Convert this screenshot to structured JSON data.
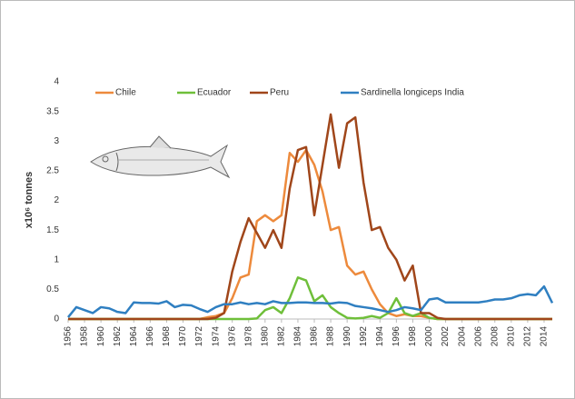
{
  "chart_data": {
    "type": "line",
    "y_label": "x10⁶ tonnes",
    "x": [
      1956,
      1957,
      1958,
      1959,
      1960,
      1961,
      1962,
      1963,
      1964,
      1965,
      1966,
      1967,
      1968,
      1969,
      1970,
      1971,
      1972,
      1973,
      1974,
      1975,
      1976,
      1977,
      1978,
      1979,
      1980,
      1981,
      1982,
      1983,
      1984,
      1985,
      1986,
      1987,
      1988,
      1989,
      1990,
      1991,
      1992,
      1993,
      1994,
      1995,
      1996,
      1997,
      1998,
      1999,
      2000,
      2001,
      2002,
      2003,
      2004,
      2005,
      2006,
      2007,
      2008,
      2009,
      2010,
      2011,
      2012,
      2013,
      2014,
      2015
    ],
    "xlim": [
      1956,
      2015
    ],
    "xticks": [
      1956,
      1958,
      1960,
      1962,
      1964,
      1966,
      1968,
      1970,
      1972,
      1974,
      1976,
      1978,
      1980,
      1982,
      1984,
      1986,
      1988,
      1990,
      1992,
      1994,
      1996,
      1998,
      2000,
      2002,
      2004,
      2006,
      2008,
      2010,
      2012,
      2014
    ],
    "ylim": [
      0,
      4
    ],
    "yticks": [
      0,
      0.5,
      1,
      1.5,
      2,
      2.5,
      3,
      3.5,
      4
    ],
    "series": [
      {
        "name": "Chile",
        "color": "#ed8a3c",
        "values": [
          0,
          0,
          0,
          0,
          0,
          0,
          0,
          0,
          0,
          0,
          0,
          0,
          0,
          0,
          0,
          0,
          0,
          0.03,
          0.05,
          0.1,
          0.35,
          0.7,
          0.75,
          1.65,
          1.75,
          1.65,
          1.75,
          2.8,
          2.65,
          2.85,
          2.6,
          2.15,
          1.5,
          1.55,
          0.9,
          0.75,
          0.8,
          0.5,
          0.25,
          0.1,
          0.05,
          0.08,
          0.05,
          0.05,
          0.02,
          0,
          0,
          0,
          0,
          0,
          0,
          0,
          0,
          0,
          0,
          0,
          0,
          0,
          0,
          0
        ]
      },
      {
        "name": "Ecuador",
        "color": "#6fbf3a",
        "values": [
          0,
          0,
          0,
          0,
          0,
          0,
          0,
          0,
          0,
          0,
          0,
          0,
          0,
          0,
          0,
          0,
          0,
          0,
          0,
          0,
          0,
          0,
          0,
          0.01,
          0.15,
          0.2,
          0.1,
          0.35,
          0.7,
          0.65,
          0.3,
          0.4,
          0.2,
          0.1,
          0.02,
          0.01,
          0.02,
          0.05,
          0.02,
          0.1,
          0.35,
          0.1,
          0.05,
          0.1,
          0.02,
          0,
          0,
          0,
          0,
          0,
          0,
          0,
          0,
          0,
          0,
          0,
          0,
          0,
          0,
          0
        ]
      },
      {
        "name": "Peru",
        "color": "#a0461a",
        "values": [
          0,
          0,
          0,
          0,
          0,
          0,
          0,
          0,
          0,
          0,
          0,
          0,
          0,
          0,
          0,
          0,
          0,
          0,
          0.02,
          0.1,
          0.8,
          1.3,
          1.7,
          1.45,
          1.2,
          1.5,
          1.2,
          2.2,
          2.85,
          2.9,
          1.75,
          2.6,
          3.45,
          2.55,
          3.3,
          3.4,
          2.3,
          1.5,
          1.55,
          1.2,
          1.0,
          0.65,
          0.9,
          0.1,
          0.1,
          0.02,
          0,
          0,
          0,
          0,
          0,
          0,
          0,
          0,
          0,
          0,
          0,
          0,
          0,
          0
        ]
      },
      {
        "name": "Sardinella longiceps India",
        "color": "#2f7fc1",
        "values": [
          0.03,
          0.2,
          0.15,
          0.1,
          0.2,
          0.18,
          0.12,
          0.1,
          0.28,
          0.27,
          0.27,
          0.26,
          0.3,
          0.2,
          0.24,
          0.23,
          0.17,
          0.12,
          0.2,
          0.25,
          0.25,
          0.28,
          0.25,
          0.27,
          0.25,
          0.3,
          0.27,
          0.27,
          0.28,
          0.28,
          0.27,
          0.27,
          0.26,
          0.28,
          0.27,
          0.22,
          0.2,
          0.18,
          0.15,
          0.12,
          0.15,
          0.2,
          0.18,
          0.15,
          0.33,
          0.35,
          0.28,
          0.28,
          0.28,
          0.28,
          0.28,
          0.3,
          0.33,
          0.33,
          0.35,
          0.4,
          0.42,
          0.4,
          0.55,
          0.27
        ]
      }
    ]
  }
}
